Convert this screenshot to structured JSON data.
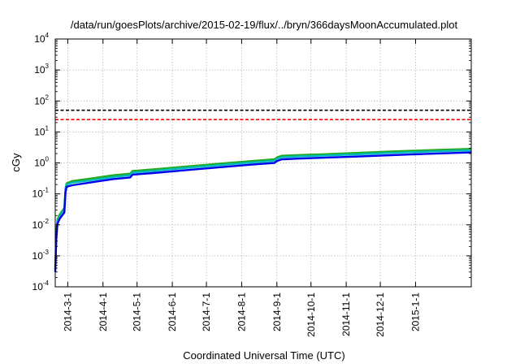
{
  "chart_data": {
    "type": "line",
    "title": "/data/run/goesPlots/archive/2015-02-19/flux/../bryn/366daysMoonAccumulated.plot",
    "xlabel": "Coordinated Universal Time (UTC)",
    "ylabel": "cGy",
    "y_scale": "log",
    "ylim": [
      0.0001,
      10000
    ],
    "xlim": [
      "2014-02-18",
      "2015-02-19"
    ],
    "grid": true,
    "y_ticks": [
      {
        "value": 0.0001,
        "base": "10",
        "exp": "-4"
      },
      {
        "value": 0.001,
        "base": "10",
        "exp": "-3"
      },
      {
        "value": 0.01,
        "base": "10",
        "exp": "-2"
      },
      {
        "value": 0.1,
        "base": "10",
        "exp": "-1"
      },
      {
        "value": 1,
        "base": "10",
        "exp": "0"
      },
      {
        "value": 10,
        "base": "10",
        "exp": "1"
      },
      {
        "value": 100,
        "base": "10",
        "exp": "2"
      },
      {
        "value": 1000,
        "base": "10",
        "exp": "3"
      },
      {
        "value": 10000,
        "base": "10",
        "exp": "4"
      }
    ],
    "x_ticks": [
      "2014-3-1",
      "2014-4-1",
      "2014-5-1",
      "2014-6-1",
      "2014-7-1",
      "2014-8-1",
      "2014-9-1",
      "2014-10-1",
      "2014-11-1",
      "2014-12-1",
      "2015-1-1"
    ],
    "reference_lines": [
      {
        "value": 50,
        "color": "#000000",
        "style": "dashed"
      },
      {
        "value": 25,
        "color": "#ff0000",
        "style": "dashed"
      }
    ],
    "series": [
      {
        "color": "#22aa22",
        "x": [
          "2014-02-18",
          "2014-02-19",
          "2014-02-20",
          "2014-02-22",
          "2014-02-26",
          "2014-02-27",
          "2014-02-28",
          "2014-03-05",
          "2014-03-20",
          "2014-04-10",
          "2014-04-25",
          "2014-04-27",
          "2014-05-15",
          "2014-06-10",
          "2014-07-10",
          "2014-08-10",
          "2014-08-30",
          "2014-09-01",
          "2014-09-05",
          "2014-09-20",
          "2014-10-10",
          "2014-11-10",
          "2014-12-10",
          "2015-01-10",
          "2015-02-19"
        ],
        "y": [
          0.0004,
          0.006,
          0.015,
          0.022,
          0.035,
          0.15,
          0.22,
          0.26,
          0.31,
          0.4,
          0.45,
          0.55,
          0.62,
          0.75,
          0.93,
          1.15,
          1.32,
          1.5,
          1.7,
          1.8,
          1.9,
          2.1,
          2.35,
          2.55,
          2.85
        ]
      },
      {
        "color": "#00bbbb",
        "x": [
          "2014-02-18",
          "2014-02-19",
          "2014-02-20",
          "2014-02-22",
          "2014-02-26",
          "2014-02-27",
          "2014-02-28",
          "2014-03-05",
          "2014-03-20",
          "2014-04-10",
          "2014-04-25",
          "2014-04-27",
          "2014-05-15",
          "2014-06-10",
          "2014-07-10",
          "2014-08-10",
          "2014-08-30",
          "2014-09-01",
          "2014-09-05",
          "2014-09-20",
          "2014-10-10",
          "2014-11-10",
          "2014-12-10",
          "2015-01-10",
          "2015-02-19"
        ],
        "y": [
          0.00035,
          0.005,
          0.013,
          0.019,
          0.03,
          0.13,
          0.2,
          0.23,
          0.27,
          0.35,
          0.4,
          0.49,
          0.55,
          0.67,
          0.83,
          1.03,
          1.18,
          1.35,
          1.52,
          1.62,
          1.71,
          1.88,
          2.1,
          2.3,
          2.55
        ]
      },
      {
        "color": "#0000ee",
        "x": [
          "2014-02-18",
          "2014-02-19",
          "2014-02-20",
          "2014-02-22",
          "2014-02-26",
          "2014-02-27",
          "2014-02-28",
          "2014-03-05",
          "2014-03-20",
          "2014-04-10",
          "2014-04-25",
          "2014-04-27",
          "2014-05-15",
          "2014-06-10",
          "2014-07-10",
          "2014-08-10",
          "2014-08-30",
          "2014-09-01",
          "2014-09-05",
          "2014-09-20",
          "2014-10-10",
          "2014-11-10",
          "2014-12-10",
          "2015-01-10",
          "2015-02-19"
        ],
        "y": [
          0.0003,
          0.004,
          0.011,
          0.016,
          0.025,
          0.11,
          0.17,
          0.19,
          0.23,
          0.3,
          0.34,
          0.42,
          0.47,
          0.57,
          0.71,
          0.88,
          1.0,
          1.15,
          1.3,
          1.38,
          1.46,
          1.6,
          1.78,
          1.95,
          2.18
        ]
      }
    ]
  }
}
